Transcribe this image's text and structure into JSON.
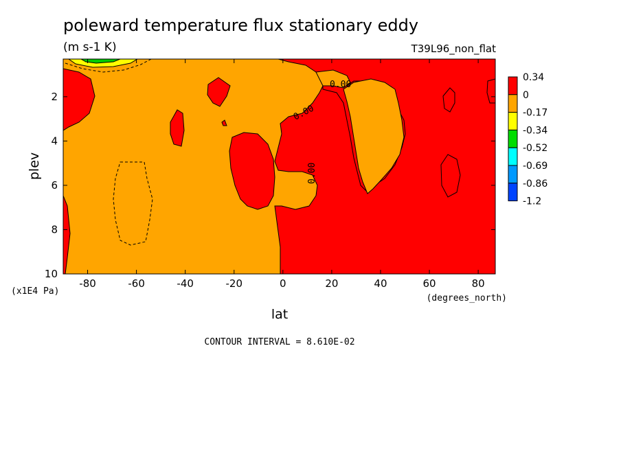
{
  "chart_data": {
    "type": "heatmap",
    "title": "poleward temperature flux stationary eddy",
    "units": "(m s-1 K)",
    "run_label": "T39L96_non_flat",
    "xlabel": "lat",
    "x_units": "(degrees_north)",
    "ylabel": "plev",
    "y_units": "(x1E4 Pa)",
    "xlim": [
      -90,
      87
    ],
    "ylim": [
      10,
      0.3
    ],
    "x_ticks": [
      -80,
      -60,
      -40,
      -20,
      0,
      20,
      40,
      60,
      80
    ],
    "y_ticks": [
      2,
      4,
      6,
      8,
      10
    ],
    "contour_interval": "CONTOUR INTERVAL = 8.610E-02",
    "contour_labels": [
      "0.00",
      "0.00",
      "0.00"
    ],
    "colorbar": {
      "levels": [
        "0.34",
        "0",
        "-0.17",
        "-0.34",
        "-0.52",
        "-0.69",
        "-0.86",
        "-1.2"
      ],
      "colors": [
        "#ff0000",
        "#ffa500",
        "#ffff00",
        "#00dd00",
        "#00ffff",
        "#0099ff",
        "#0044ff"
      ]
    },
    "regions": {
      "positive_color": "#ff0000",
      "negative_color": "#ffa500",
      "strong_negative_colors": [
        "#ffff00",
        "#00cc00"
      ]
    }
  }
}
